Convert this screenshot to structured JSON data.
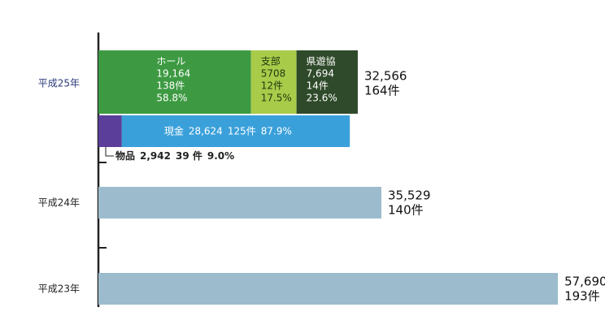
{
  "chart_data": {
    "type": "bar",
    "orientation": "horizontal",
    "categories": [
      "平成25年",
      "平成24年",
      "平成23年"
    ],
    "values": [
      32566,
      35529,
      57690
    ],
    "value_labels": [
      "32,566",
      "35,529",
      "57,690"
    ],
    "counts": [
      164,
      140,
      193
    ],
    "count_labels": [
      "164件",
      "140件",
      "193件"
    ],
    "color": "#9cbccd",
    "xlim": [
      0,
      58500
    ],
    "breakdown_by_source": [
      {
        "name": "ホール",
        "color": "#3d9a42",
        "value": 19164,
        "value_label": "19,164",
        "count": 138,
        "count_label": "138件",
        "percent": 58.8,
        "percent_label": "58.8%"
      },
      {
        "name": "支部",
        "color": "#a8cb4a",
        "value": 5708,
        "count": 12,
        "count_label": "12件",
        "percent": 17.5,
        "percent_label": "17.5%"
      },
      {
        "name": "県遊協",
        "color": "#2f4a2a",
        "value": 7694,
        "value_label": "7,694",
        "count": 14,
        "count_label": "14件",
        "percent": 23.6,
        "percent_label": "23.6%"
      }
    ],
    "breakdown_by_type": [
      {
        "name": "物品",
        "color": "#5b3e99",
        "value": 2942,
        "value_label": "2,942",
        "count": 39,
        "count_label": "39 件",
        "percent": 9.0,
        "percent_label": "9.0%"
      },
      {
        "name": "現金",
        "color": "#3aa0da",
        "value": 28624,
        "value_label": "28,624",
        "count": 125,
        "count_label": "125件",
        "percent": 87.9,
        "percent_label": "87.9%"
      }
    ]
  }
}
